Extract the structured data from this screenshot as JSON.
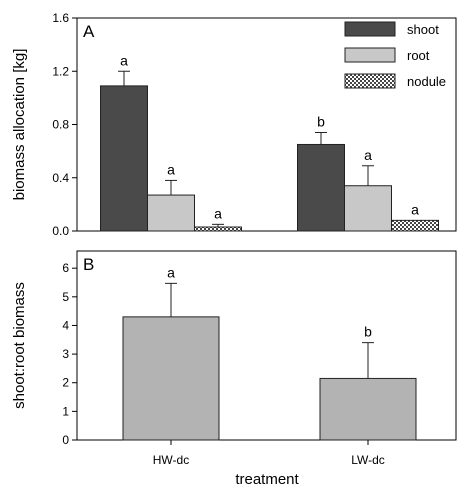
{
  "chart_data": [
    {
      "type": "bar",
      "panel_label": "A",
      "categories": [
        "HW-dc",
        "LW-dc"
      ],
      "ylabel": "biomass allocation [kg]",
      "ylim": [
        0,
        1.6
      ],
      "yticks": [
        "0.0",
        "0.4",
        "0.8",
        "1.2",
        "1.6"
      ],
      "legend_position": "top-right",
      "series": [
        {
          "name": "shoot",
          "color": "#4a4a4a",
          "pattern": "solid",
          "values": [
            1.09,
            0.65
          ],
          "errors": [
            0.11,
            0.09
          ],
          "sig": [
            "a",
            "b"
          ]
        },
        {
          "name": "root",
          "color": "#c8c8c8",
          "pattern": "solid",
          "values": [
            0.27,
            0.34
          ],
          "errors": [
            0.11,
            0.15
          ],
          "sig": [
            "a",
            "a"
          ]
        },
        {
          "name": "nodule",
          "color": "#888888",
          "pattern": "checker",
          "values": [
            0.03,
            0.08
          ],
          "errors": [
            0.02,
            0.0
          ],
          "sig": [
            "a",
            "a"
          ]
        }
      ]
    },
    {
      "type": "bar",
      "panel_label": "B",
      "categories": [
        "HW-dc",
        "LW-dc"
      ],
      "xlabel": "treatment",
      "ylabel": "shoot:root biomass",
      "ylim": [
        0,
        6.6
      ],
      "yticks": [
        "0",
        "1",
        "2",
        "3",
        "4",
        "5",
        "6"
      ],
      "series": [
        {
          "color": "#b3b3b3",
          "values": [
            4.3,
            2.15
          ],
          "errors": [
            1.17,
            1.25
          ],
          "sig": [
            "a",
            "b"
          ]
        }
      ]
    }
  ]
}
